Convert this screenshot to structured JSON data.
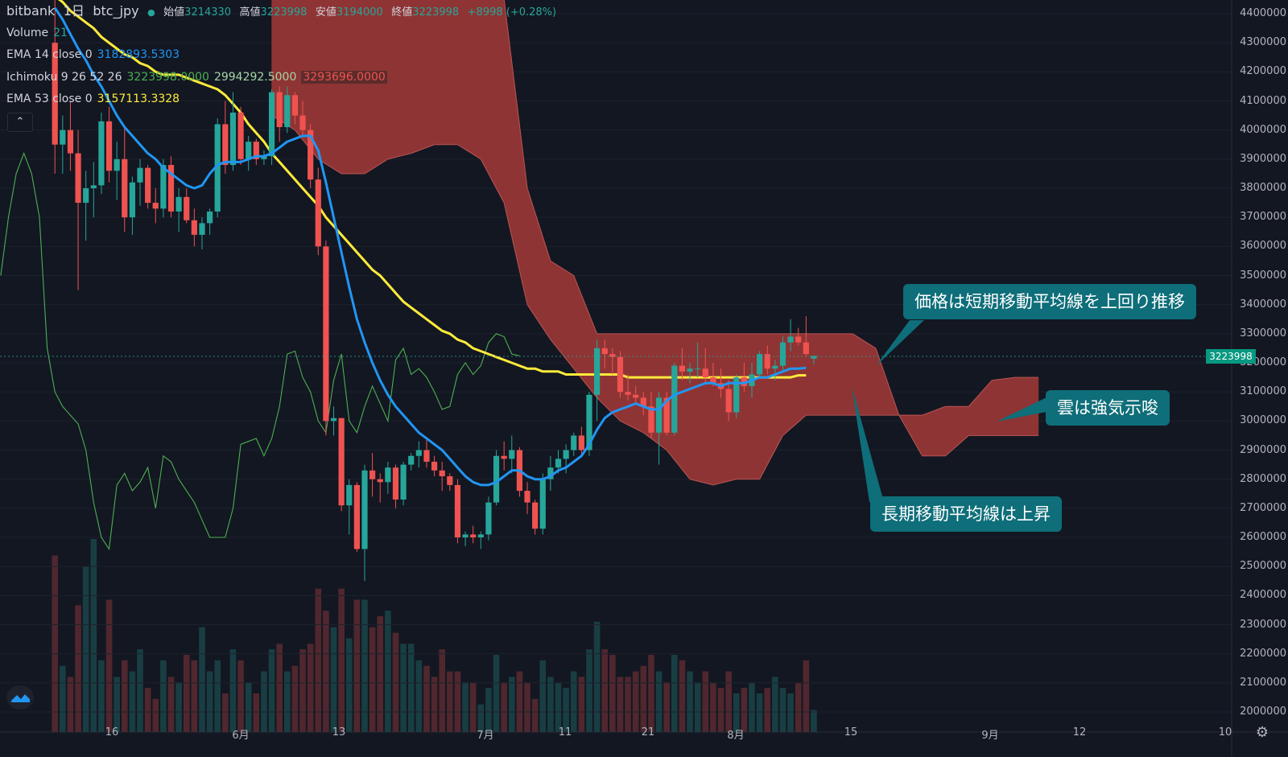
{
  "header": {
    "symbol_parts": [
      "bitbank",
      "1日",
      "btc_jpy"
    ],
    "ohlc": [
      {
        "key": "始値",
        "value": "3214330"
      },
      {
        "key": "高値",
        "value": "3223998"
      },
      {
        "key": "安値",
        "value": "3194000"
      },
      {
        "key": "終値",
        "value": "3223998"
      }
    ],
    "change": "+8998 (+0.28%)"
  },
  "indicators": {
    "volume": {
      "label": "Volume",
      "value": "21"
    },
    "ema14": {
      "label": "EMA 14 close 0",
      "value": "3182893.5303"
    },
    "ichimoku": {
      "label": "Ichimoku 9 26 52 26",
      "v1": "3223998.0000",
      "v2": "2994292.5000",
      "v3": "3293696.0000"
    },
    "ema53": {
      "label": "EMA 53 close 0",
      "value": "3157113.3328"
    }
  },
  "callouts": {
    "short_ma": "価格は短期移動平均線を上回り推移",
    "cloud": "雲は強気示唆",
    "long_ma": "長期移動平均線は上昇"
  },
  "price_axis": {
    "ticks": [
      "4400000",
      "4300000",
      "4200000",
      "4100000",
      "4000000",
      "3900000",
      "3800000",
      "3700000",
      "3600000",
      "3500000",
      "3400000",
      "3300000",
      "3200000",
      "3100000",
      "3000000",
      "2900000",
      "2800000",
      "2700000",
      "2600000",
      "2500000",
      "2400000",
      "2300000",
      "2200000",
      "2100000",
      "2000000"
    ],
    "current_price": "3223998"
  },
  "time_axis": {
    "ticks": [
      "16",
      "6月",
      "13",
      "7月",
      "11",
      "21",
      "8月",
      "15",
      "9月",
      "12",
      "10"
    ]
  },
  "colors": {
    "background": "#131722",
    "up": "#26a69a",
    "down": "#ef5350",
    "ema14": "#2196f3",
    "ema53": "#ffeb3b",
    "cloud_bear": "#8f3434",
    "cloud_bull": "#2f5a34",
    "lagging": "#4caf50",
    "callout": "#0e6e79"
  },
  "chart_data": {
    "type": "candlestick",
    "symbol": "btc_jpy",
    "exchange": "bitbank",
    "interval": "1日",
    "ylim": [
      2000000,
      4400000
    ],
    "x": [
      "05-10",
      "05-11",
      "05-12",
      "05-13",
      "05-14",
      "05-15",
      "05-16",
      "05-17",
      "05-18",
      "05-19",
      "05-20",
      "05-21",
      "05-22",
      "05-23",
      "05-24",
      "05-25",
      "05-26",
      "05-27",
      "05-28",
      "05-29",
      "05-30",
      "05-31",
      "06-01",
      "06-02",
      "06-03",
      "06-04",
      "06-05",
      "06-06",
      "06-07",
      "06-08",
      "06-09",
      "06-10",
      "06-11",
      "06-12",
      "06-13",
      "06-14",
      "06-15",
      "06-16",
      "06-17",
      "06-18",
      "06-19",
      "06-20",
      "06-21",
      "06-22",
      "06-23",
      "06-24",
      "06-25",
      "06-26",
      "06-27",
      "06-28",
      "06-29",
      "06-30",
      "07-01",
      "07-02",
      "07-03",
      "07-04",
      "07-05",
      "07-06",
      "07-07",
      "07-08",
      "07-09",
      "07-10",
      "07-11",
      "07-12",
      "07-13",
      "07-14",
      "07-15",
      "07-16",
      "07-17",
      "07-18",
      "07-19",
      "07-20",
      "07-21",
      "07-22",
      "07-23",
      "07-24",
      "07-25",
      "07-26",
      "07-27",
      "07-28",
      "07-29",
      "07-30",
      "07-31",
      "08-01",
      "08-02",
      "08-03",
      "08-04",
      "08-05",
      "08-06",
      "08-07",
      "08-08",
      "08-09",
      "08-10",
      "08-11",
      "08-12",
      "08-13",
      "08-14",
      "08-15",
      "08-16"
    ],
    "ohlc": [
      [
        4300000,
        4450000,
        3850000,
        3950000
      ],
      [
        3950000,
        4050000,
        3850000,
        4000000
      ],
      [
        4000000,
        4100000,
        3860000,
        3920000
      ],
      [
        3920000,
        4000000,
        3450000,
        3750000
      ],
      [
        3750000,
        3860000,
        3620000,
        3800000
      ],
      [
        3800000,
        3890000,
        3700000,
        3810000
      ],
      [
        3810000,
        4060000,
        3780000,
        4030000
      ],
      [
        4030000,
        4080000,
        3820000,
        3860000
      ],
      [
        3860000,
        3960000,
        3760000,
        3900000
      ],
      [
        3900000,
        4010000,
        3650000,
        3700000
      ],
      [
        3700000,
        3840000,
        3640000,
        3820000
      ],
      [
        3820000,
        3900000,
        3740000,
        3870000
      ],
      [
        3870000,
        3880000,
        3730000,
        3750000
      ],
      [
        3750000,
        3800000,
        3680000,
        3730000
      ],
      [
        3730000,
        3900000,
        3700000,
        3880000
      ],
      [
        3880000,
        3910000,
        3700000,
        3720000
      ],
      [
        3720000,
        3800000,
        3650000,
        3770000
      ],
      [
        3770000,
        3800000,
        3680000,
        3690000
      ],
      [
        3690000,
        3730000,
        3600000,
        3640000
      ],
      [
        3640000,
        3700000,
        3590000,
        3680000
      ],
      [
        3680000,
        3730000,
        3640000,
        3720000
      ],
      [
        3720000,
        4040000,
        3700000,
        4020000
      ],
      [
        4020000,
        4100000,
        3850000,
        3880000
      ],
      [
        3880000,
        4130000,
        3860000,
        4060000
      ],
      [
        4060000,
        4080000,
        3880000,
        3900000
      ],
      [
        3900000,
        3980000,
        3860000,
        3960000
      ],
      [
        3960000,
        3970000,
        3880000,
        3900000
      ],
      [
        3900000,
        3930000,
        3880000,
        3910000
      ],
      [
        3910000,
        4140000,
        3880000,
        4130000
      ],
      [
        4130000,
        4150000,
        3960000,
        4010000
      ],
      [
        4010000,
        4150000,
        3990000,
        4120000
      ],
      [
        4120000,
        4130000,
        4020000,
        4050000
      ],
      [
        4050000,
        4100000,
        3980000,
        4000000
      ],
      [
        4000000,
        4020000,
        3800000,
        3830000
      ],
      [
        3830000,
        3870000,
        3570000,
        3600000
      ],
      [
        3600000,
        3620000,
        2950000,
        3000000
      ],
      [
        3000000,
        3050000,
        2950000,
        3010000
      ],
      [
        3010000,
        3010000,
        2690000,
        2710000
      ],
      [
        2710000,
        2800000,
        2610000,
        2780000
      ],
      [
        2780000,
        2790000,
        2550000,
        2560000
      ],
      [
        2560000,
        2850000,
        2450000,
        2830000
      ],
      [
        2830000,
        2890000,
        2740000,
        2800000
      ],
      [
        2800000,
        2820000,
        2720000,
        2790000
      ],
      [
        2790000,
        2860000,
        2750000,
        2840000
      ],
      [
        2840000,
        2850000,
        2700000,
        2730000
      ],
      [
        2730000,
        2860000,
        2710000,
        2850000
      ],
      [
        2850000,
        2890000,
        2830000,
        2880000
      ],
      [
        2880000,
        2930000,
        2840000,
        2900000
      ],
      [
        2900000,
        2940000,
        2840000,
        2860000
      ],
      [
        2860000,
        2880000,
        2810000,
        2830000
      ],
      [
        2830000,
        2860000,
        2760000,
        2810000
      ],
      [
        2810000,
        2820000,
        2760000,
        2780000
      ],
      [
        2780000,
        2800000,
        2580000,
        2600000
      ],
      [
        2600000,
        2620000,
        2570000,
        2610000
      ],
      [
        2610000,
        2640000,
        2580000,
        2600000
      ],
      [
        2600000,
        2620000,
        2560000,
        2610000
      ],
      [
        2610000,
        2740000,
        2590000,
        2720000
      ],
      [
        2720000,
        2900000,
        2710000,
        2880000
      ],
      [
        2880000,
        2930000,
        2830000,
        2870000
      ],
      [
        2870000,
        2950000,
        2820000,
        2900000
      ],
      [
        2900000,
        2910000,
        2740000,
        2760000
      ],
      [
        2760000,
        2790000,
        2680000,
        2720000
      ],
      [
        2720000,
        2730000,
        2610000,
        2630000
      ],
      [
        2630000,
        2820000,
        2610000,
        2800000
      ],
      [
        2800000,
        2880000,
        2760000,
        2840000
      ],
      [
        2840000,
        2900000,
        2820000,
        2870000
      ],
      [
        2870000,
        2920000,
        2820000,
        2900000
      ],
      [
        2900000,
        2960000,
        2880000,
        2950000
      ],
      [
        2950000,
        2980000,
        2880000,
        2900000
      ],
      [
        2900000,
        3100000,
        2880000,
        3090000
      ],
      [
        3090000,
        3280000,
        3000000,
        3250000
      ],
      [
        3250000,
        3280000,
        3180000,
        3230000
      ],
      [
        3230000,
        3250000,
        3160000,
        3220000
      ],
      [
        3220000,
        3240000,
        3080000,
        3100000
      ],
      [
        3100000,
        3160000,
        3070000,
        3090000
      ],
      [
        3090000,
        3120000,
        3060000,
        3080000
      ],
      [
        3080000,
        3100000,
        3020000,
        3050000
      ],
      [
        3050000,
        3100000,
        2940000,
        2960000
      ],
      [
        2960000,
        3100000,
        2850000,
        3080000
      ],
      [
        3080000,
        3100000,
        2950000,
        2960000
      ],
      [
        2960000,
        3200000,
        2950000,
        3190000
      ],
      [
        3190000,
        3250000,
        3140000,
        3170000
      ],
      [
        3170000,
        3200000,
        3130000,
        3180000
      ],
      [
        3180000,
        3270000,
        3150000,
        3180000
      ],
      [
        3180000,
        3250000,
        3130000,
        3150000
      ],
      [
        3150000,
        3200000,
        3120000,
        3130000
      ],
      [
        3130000,
        3180000,
        3080000,
        3110000
      ],
      [
        3110000,
        3140000,
        3000000,
        3030000
      ],
      [
        3030000,
        3160000,
        3010000,
        3150000
      ],
      [
        3150000,
        3200000,
        3100000,
        3120000
      ],
      [
        3120000,
        3200000,
        3080000,
        3160000
      ],
      [
        3160000,
        3240000,
        3150000,
        3230000
      ],
      [
        3230000,
        3260000,
        3160000,
        3180000
      ],
      [
        3180000,
        3210000,
        3140000,
        3190000
      ],
      [
        3190000,
        3290000,
        3170000,
        3270000
      ],
      [
        3270000,
        3350000,
        3240000,
        3290000
      ],
      [
        3290000,
        3320000,
        3260000,
        3270000
      ],
      [
        3270000,
        3360000,
        3220000,
        3230000
      ],
      [
        3214330,
        3223998,
        3194000,
        3223998
      ]
    ],
    "volume": [
      3200,
      1200,
      1000,
      2300,
      3000,
      3500,
      1300,
      2400,
      1000,
      1300,
      1100,
      1500,
      800,
      600,
      1300,
      1000,
      900,
      1400,
      1300,
      1900,
      1100,
      1300,
      700,
      1500,
      1300,
      900,
      700,
      1100,
      1500,
      1600,
      1100,
      1200,
      1500,
      1600,
      2600,
      2200,
      1900,
      2600,
      1700,
      2400,
      2400,
      1900,
      2100,
      2200,
      1800,
      1600,
      1600,
      1300,
      1200,
      1000,
      1500,
      1100,
      1100,
      900,
      900,
      500,
      800,
      1400,
      900,
      1000,
      1100,
      900,
      600,
      1300,
      1000,
      900,
      800,
      1100,
      1000,
      1500,
      2000,
      1500,
      1400,
      1000,
      1000,
      1100,
      1200,
      1400,
      1100,
      900,
      1400,
      1300,
      1100,
      900,
      1100,
      900,
      800,
      1100,
      700,
      800,
      900,
      700,
      800,
      1000,
      800,
      700,
      900,
      1300,
      400
    ],
    "ema14": [
      4420000,
      4380000,
      4330000,
      4280000,
      4240000,
      4190000,
      4150000,
      4100000,
      4050000,
      4010000,
      3980000,
      3950000,
      3920000,
      3900000,
      3870000,
      3850000,
      3830000,
      3810000,
      3800000,
      3810000,
      3850000,
      3880000,
      3890000,
      3890000,
      3890000,
      3900000,
      3910000,
      3910000,
      3920000,
      3940000,
      3960000,
      3970000,
      3980000,
      3980000,
      3930000,
      3820000,
      3700000,
      3580000,
      3460000,
      3350000,
      3270000,
      3200000,
      3140000,
      3090000,
      3050000,
      3020000,
      2990000,
      2960000,
      2940000,
      2920000,
      2900000,
      2870000,
      2840000,
      2810000,
      2790000,
      2780000,
      2780000,
      2790000,
      2810000,
      2830000,
      2830000,
      2810000,
      2800000,
      2800000,
      2810000,
      2830000,
      2840000,
      2860000,
      2880000,
      2920000,
      2970000,
      3010000,
      3030000,
      3040000,
      3050000,
      3060000,
      3050000,
      3040000,
      3040000,
      3070000,
      3090000,
      3100000,
      3110000,
      3120000,
      3130000,
      3130000,
      3120000,
      3130000,
      3130000,
      3130000,
      3140000,
      3150000,
      3150000,
      3160000,
      3170000,
      3180000,
      3180000,
      3182894
    ],
    "ema53": [
      4460000,
      4440000,
      4410000,
      4390000,
      4370000,
      4350000,
      4320000,
      4300000,
      4280000,
      4260000,
      4250000,
      4230000,
      4220000,
      4200000,
      4190000,
      4190000,
      4190000,
      4180000,
      4170000,
      4160000,
      4150000,
      4140000,
      4120000,
      4090000,
      4060000,
      4020000,
      3990000,
      3960000,
      3920000,
      3890000,
      3860000,
      3830000,
      3800000,
      3770000,
      3740000,
      3700000,
      3670000,
      3640000,
      3610000,
      3580000,
      3550000,
      3520000,
      3500000,
      3470000,
      3440000,
      3410000,
      3390000,
      3370000,
      3350000,
      3330000,
      3310000,
      3300000,
      3280000,
      3270000,
      3250000,
      3240000,
      3230000,
      3220000,
      3210000,
      3200000,
      3190000,
      3180000,
      3180000,
      3170000,
      3170000,
      3170000,
      3160000,
      3160000,
      3160000,
      3160000,
      3160000,
      3160000,
      3160000,
      3160000,
      3150000,
      3150000,
      3150000,
      3150000,
      3150000,
      3150000,
      3150000,
      3150000,
      3150000,
      3150000,
      3150000,
      3150000,
      3150000,
      3150000,
      3150000,
      3150000,
      3150000,
      3150000,
      3150000,
      3150000,
      3150000,
      3150000,
      3157000,
      3157113
    ],
    "cloud": {
      "x": [
        "06-07",
        "06-10",
        "06-13",
        "06-16",
        "06-19",
        "06-22",
        "06-25",
        "06-28",
        "07-01",
        "07-04",
        "07-07",
        "07-10",
        "07-13",
        "07-16",
        "07-19",
        "07-22",
        "07-25",
        "07-28",
        "07-31",
        "08-03",
        "08-06",
        "08-09",
        "08-12",
        "08-15",
        "08-18",
        "08-21",
        "08-24",
        "08-27",
        "08-30",
        "09-02",
        "09-05",
        "09-08",
        "09-11",
        "09-14"
      ],
      "span_a": [
        4450000,
        4450000,
        4450000,
        4450000,
        4450000,
        4450000,
        4450000,
        4450000,
        4450000,
        4450000,
        4450000,
        3800000,
        3550000,
        3500000,
        3300000,
        3300000,
        3300000,
        3300000,
        3300000,
        3300000,
        3300000,
        3300000,
        3300000,
        3300000,
        3300000,
        3300000,
        3250000,
        3020000,
        3020000,
        3050000,
        3050000,
        3140000,
        3150000,
        3150000
      ],
      "span_b": [
        4050000,
        4000000,
        3900000,
        3850000,
        3850000,
        3900000,
        3920000,
        3950000,
        3950000,
        3900000,
        3750000,
        3400000,
        3280000,
        3180000,
        3080000,
        3000000,
        2960000,
        2900000,
        2800000,
        2780000,
        2800000,
        2800000,
        2950000,
        3020000,
        3020000,
        3020000,
        3020000,
        3020000,
        2880000,
        2880000,
        2950000,
        2950000,
        2950000,
        2950000
      ]
    },
    "lagging_span": [
      3500000,
      3700000,
      3850000,
      3920000,
      3850000,
      3700000,
      3250000,
      3100000,
      3050000,
      3020000,
      2990000,
      2900000,
      2720000,
      2600000,
      2560000,
      2780000,
      2820000,
      2760000,
      2790000,
      2840000,
      2700000,
      2880000,
      2860000,
      2800000,
      2760000,
      2720000,
      2660000,
      2600000,
      2600000,
      2600000,
      2700000,
      2920000,
      2930000,
      2940000,
      2880000,
      2940000,
      3050000,
      3230000,
      3240000,
      3150000,
      3100000,
      3000000,
      2960000,
      3140000,
      3230000,
      3000000,
      2960000,
      3050000,
      3120000,
      3060000,
      3000000,
      3210000,
      3250000,
      3160000,
      3180000,
      3150000,
      3100000,
      3040000,
      3050000,
      3160000,
      3200000,
      3160000,
      3190000,
      3270000,
      3300000,
      3290000,
      3230000,
      3223998
    ]
  }
}
